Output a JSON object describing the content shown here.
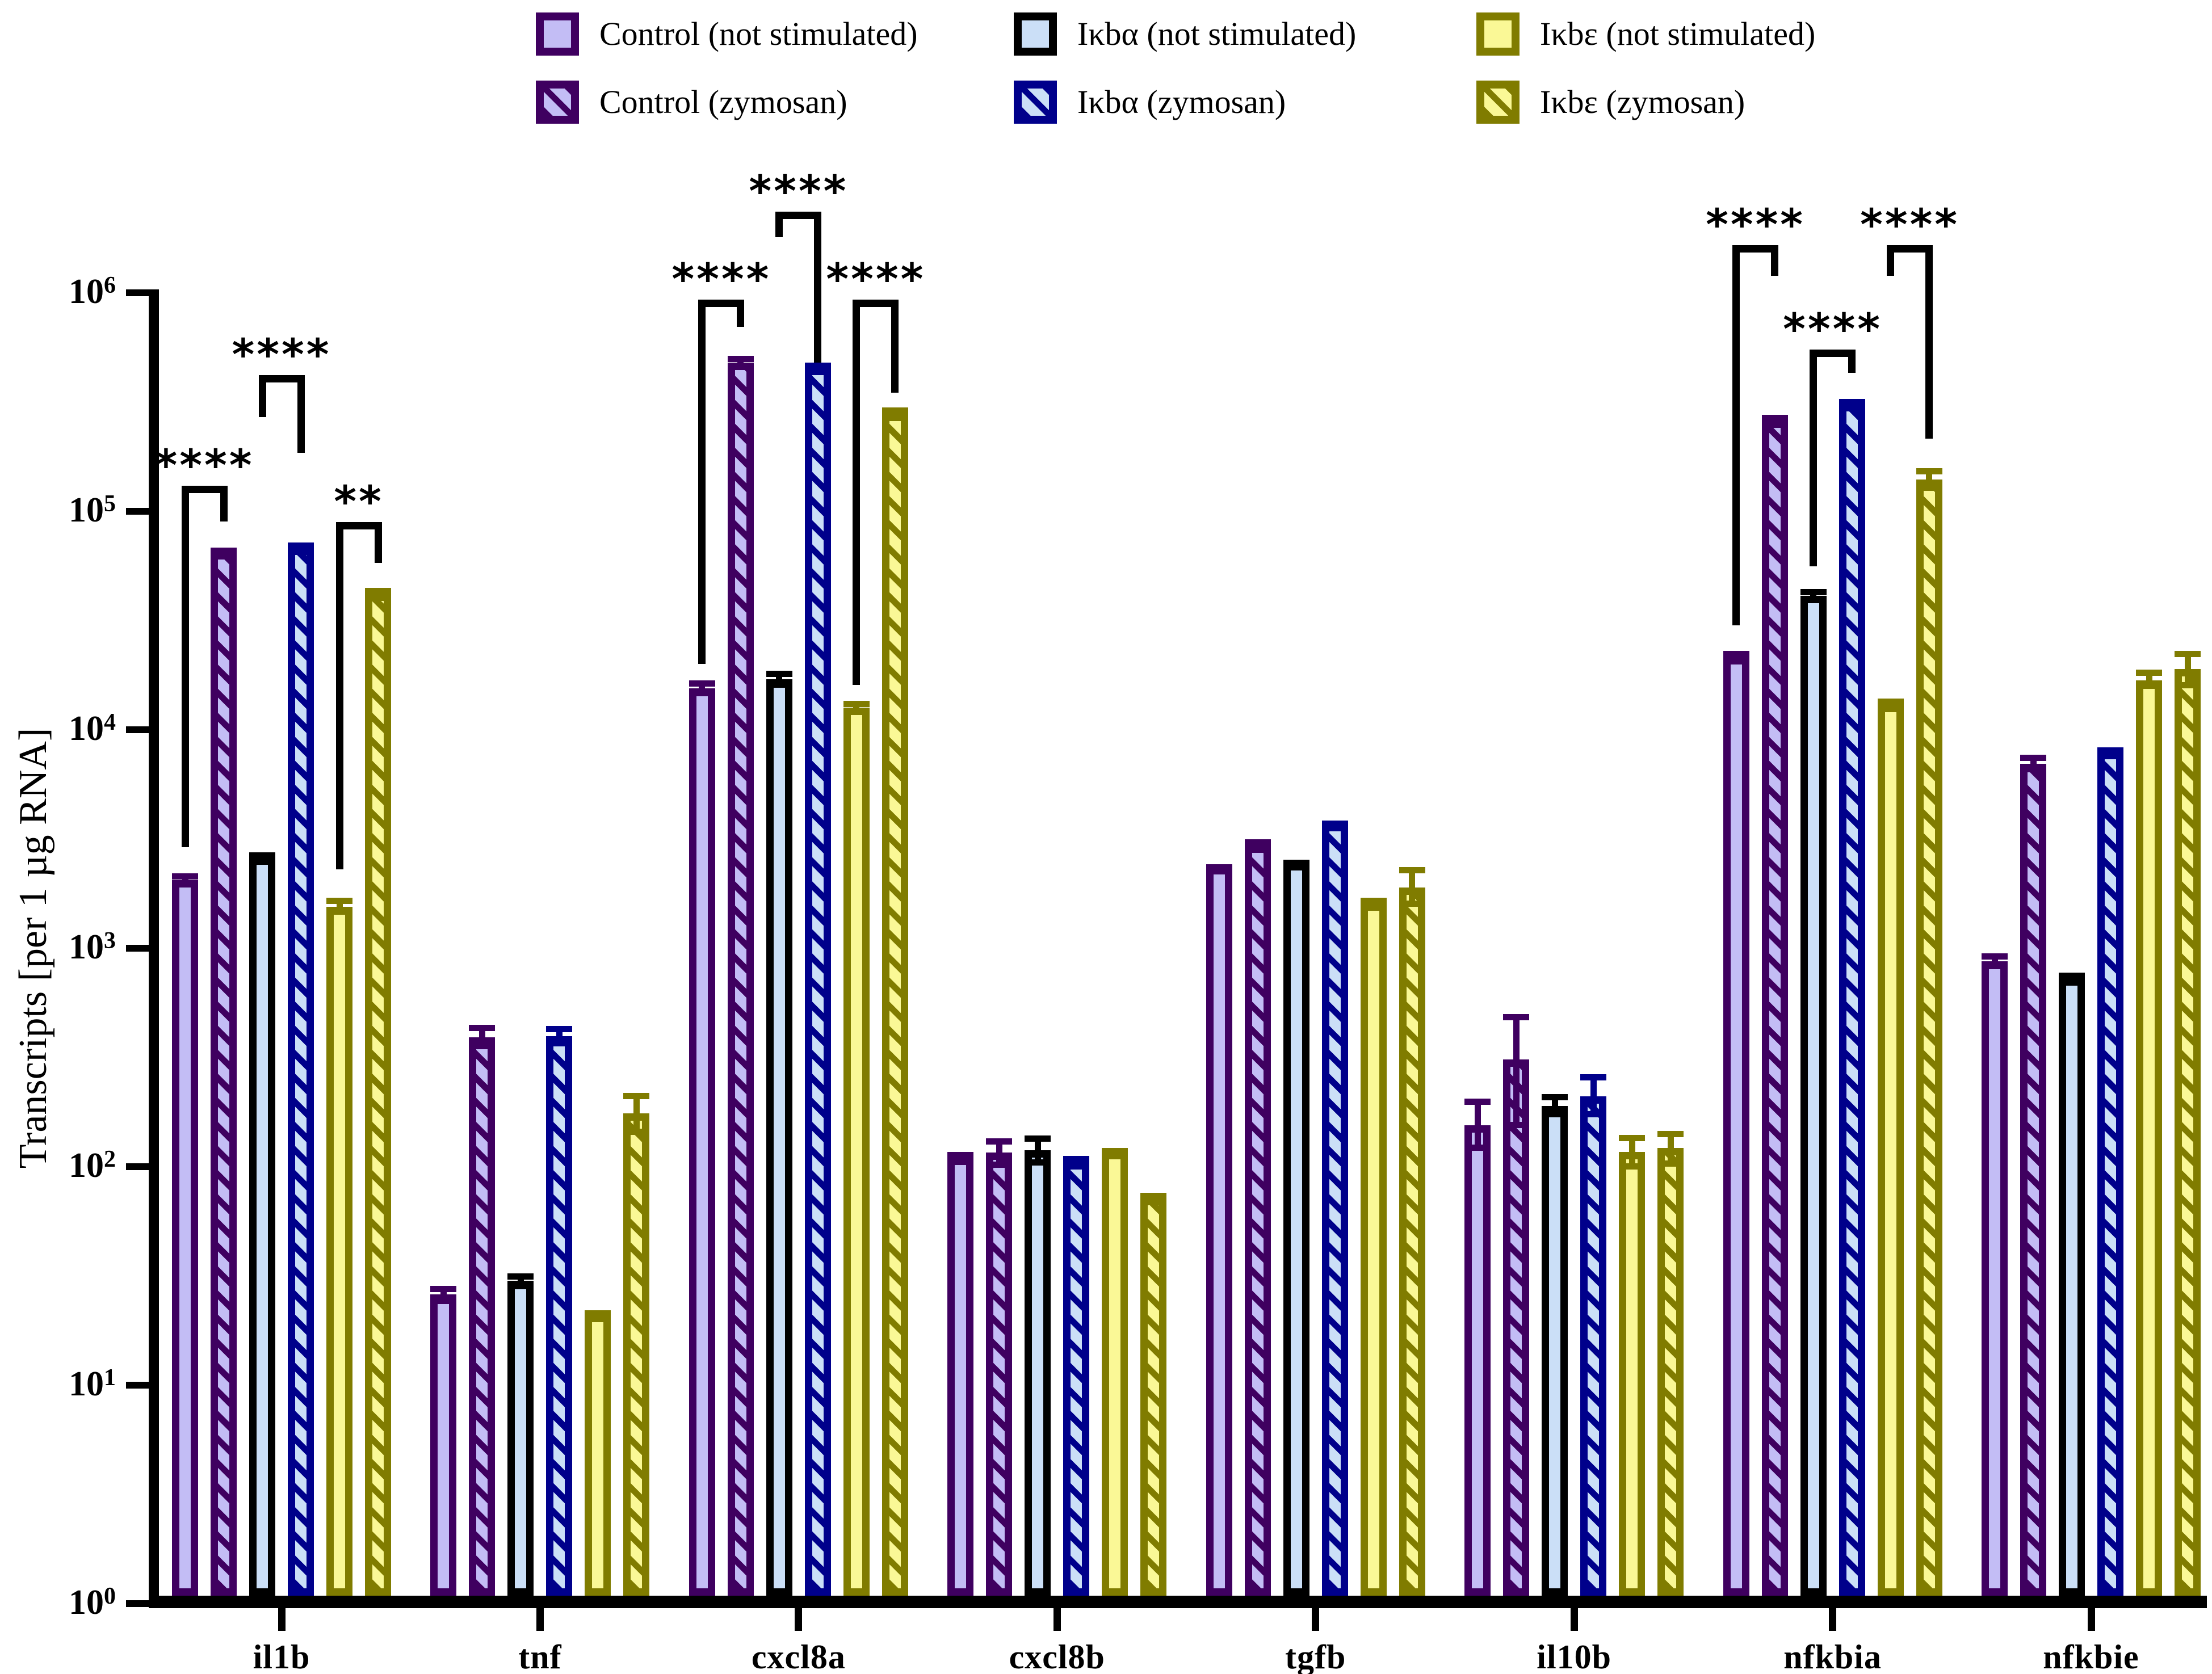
{
  "colors": {
    "background": "#FFFFFF",
    "axis": "#000000",
    "purple_dark": "#3F0060",
    "purple_light": "#C3BDF5",
    "black": "#000000",
    "blue_light": "#CBDFF7",
    "navy": "#00008B",
    "yellow_light": "#FAF896",
    "olive": "#807C00"
  },
  "chart_data": {
    "type": "bar",
    "title": "",
    "xlabel": "",
    "ylabel": "Transcripts [per 1 µg RNA]",
    "yscale": "log",
    "ylim": [
      1,
      1000000
    ],
    "y_tick_exponents": [
      0,
      1,
      2,
      3,
      4,
      5,
      6
    ],
    "grid": false,
    "legend_position": "top",
    "categories": [
      "il1b",
      "tnf",
      "cxcl8a",
      "cxcl8b",
      "tgfb",
      "il10b",
      "nfkbia",
      "nfkbie"
    ],
    "series": [
      {
        "name": "Control (not stimulated)",
        "border": "#3F0060",
        "fill": "#C3BDF5",
        "hatched": false,
        "values": [
          2050,
          26,
          15500,
          110,
          2350,
          155,
          21500,
          870
        ],
        "err_hi": [
          2200,
          28.5,
          16800,
          117,
          2430,
          205,
          23000,
          950
        ],
        "err_lo": [
          1900,
          23.5,
          14200,
          103,
          2270,
          118,
          20100,
          800
        ]
      },
      {
        "name": "Control (zymosan)",
        "border": "#3F0060",
        "fill": "#C3BDF5",
        "hatched": true,
        "values": [
          65000,
          390,
          480000,
          116,
          2950,
          310,
          260000,
          7000
        ],
        "err_hi": [
          68000,
          445,
          515000,
          135,
          3150,
          500,
          276000,
          7700
        ],
        "err_lo": [
          62000,
          345,
          448000,
          99,
          2760,
          150,
          244000,
          6400
        ]
      },
      {
        "name": "Iκbα (not stimulated)",
        "border": "#000000",
        "fill": "#CBDFF7",
        "hatched": false,
        "values": [
          2600,
          30,
          17000,
          119,
          2450,
          190,
          41000,
          730
        ],
        "err_hi": [
          2750,
          32.5,
          18600,
          139,
          2540,
          215,
          44000,
          772
        ],
        "err_lo": [
          2450,
          27.5,
          15600,
          101,
          2360,
          168,
          38200,
          690
        ]
      },
      {
        "name": "Iκbα (zymosan)",
        "border": "#00008B",
        "fill": "#CBDFF7",
        "hatched": true,
        "values": [
          68000,
          395,
          455000,
          105,
          3700,
          210,
          310000,
          7900
        ],
        "err_hi": [
          72000,
          440,
          480000,
          112,
          3810,
          265,
          326000,
          8300
        ],
        "err_lo": [
          64000,
          355,
          430000,
          98,
          3590,
          168,
          295000,
          7500
        ]
      },
      {
        "name": "Iκbε (not stimulated)",
        "border": "#807C00",
        "fill": "#FAF896",
        "hatched": false,
        "values": [
          1550,
          21,
          12600,
          117,
          1600,
          117,
          13000,
          16800
        ],
        "err_hi": [
          1700,
          22,
          13600,
          122,
          1700,
          140,
          13900,
          18800
        ],
        "err_lo": [
          1420,
          20,
          11700,
          112,
          1500,
          97,
          12200,
          15400
        ]
      },
      {
        "name": "Iκbε (zymosan)",
        "border": "#807C00",
        "fill": "#FAF896",
        "hatched": true,
        "values": [
          42000,
          175,
          280000,
          72,
          1900,
          122,
          140000,
          19000
        ],
        "err_hi": [
          44500,
          218,
          298000,
          76,
          2350,
          146,
          158000,
          23000
        ],
        "err_lo": [
          39500,
          140,
          263000,
          68,
          1550,
          100,
          124000,
          15500
        ]
      }
    ],
    "significance": [
      {
        "category": "il1b",
        "bars": [
          0,
          1
        ],
        "label": "****",
        "top": 131000,
        "left_end": 2900,
        "right_end": 90000
      },
      {
        "category": "il1b",
        "bars": [
          2,
          3
        ],
        "label": "****",
        "top": 420000,
        "left_end": 270000,
        "right_end": 185000
      },
      {
        "category": "il1b",
        "bars": [
          4,
          5
        ],
        "label": "**",
        "top": 89000,
        "left_end": 2300,
        "right_end": 58000
      },
      {
        "category": "cxcl8a",
        "bars": [
          0,
          1
        ],
        "label": "****",
        "top": 930000,
        "left_end": 20000,
        "right_end": 700000
      },
      {
        "category": "cxcl8a",
        "bars": [
          2,
          3
        ],
        "label": "****",
        "top": 2350000,
        "left_end": 1800000,
        "right_end": 380000
      },
      {
        "category": "cxcl8a",
        "bars": [
          4,
          5
        ],
        "label": "****",
        "top": 930000,
        "left_end": 16000,
        "right_end": 350000
      },
      {
        "category": "nfkbia",
        "bars": [
          0,
          1
        ],
        "label": "****",
        "top": 1650000,
        "left_end": 30000,
        "right_end": 1200000
      },
      {
        "category": "nfkbia",
        "bars": [
          2,
          3
        ],
        "label": "****",
        "top": 550000,
        "left_end": 56000,
        "right_end": 430000
      },
      {
        "category": "nfkbia",
        "bars": [
          4,
          5
        ],
        "label": "****",
        "top": 1650000,
        "left_end": 1200000,
        "right_end": 215000
      }
    ],
    "legend_rows": [
      [
        0,
        2,
        4
      ],
      [
        1,
        3,
        5
      ]
    ]
  }
}
